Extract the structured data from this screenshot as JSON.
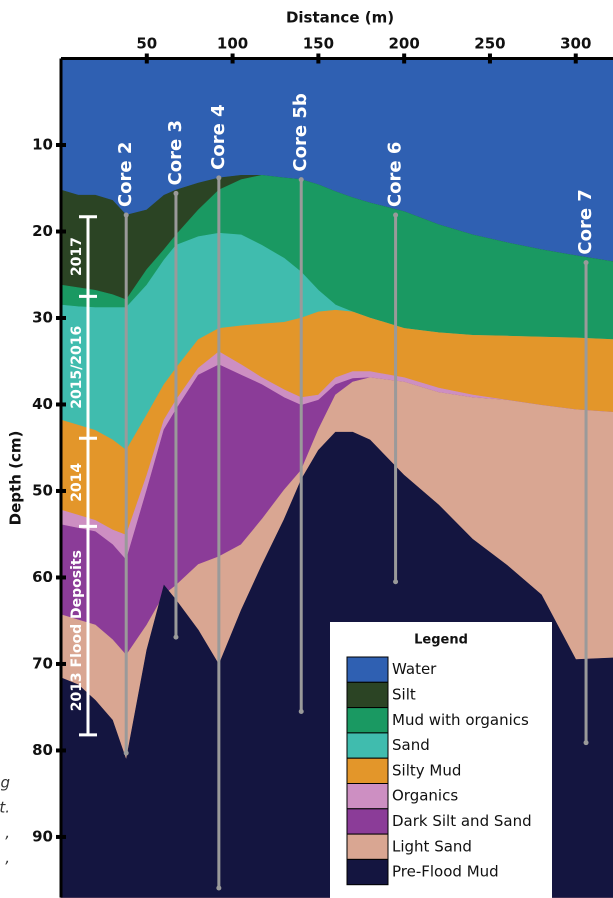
{
  "chart_data": {
    "type": "cross-section",
    "xlabel": "Distance (m)",
    "ylabel": "Depth (cm)",
    "xlim": [
      0,
      322
    ],
    "ylim": [
      0,
      97
    ],
    "xticks": [
      50,
      100,
      150,
      200,
      250,
      300
    ],
    "yticks": [
      10,
      20,
      30,
      40,
      50,
      60,
      70,
      80,
      90
    ],
    "x": [
      0,
      10,
      20,
      30,
      38,
      50,
      60,
      67,
      80,
      92,
      105,
      117,
      130,
      140,
      150,
      160,
      170,
      180,
      200,
      220,
      240,
      260,
      280,
      300,
      322
    ],
    "series": [
      {
        "name": "Water",
        "color": "#2f60b2",
        "values": [
          0,
          0,
          0,
          0,
          0,
          0,
          0,
          0,
          0,
          0,
          0,
          0,
          0,
          0,
          0,
          0,
          0,
          0,
          0,
          0,
          0,
          0,
          0,
          0,
          0
        ]
      },
      {
        "name": "Silt",
        "color": "#2b4424",
        "values": [
          15.2,
          15.8,
          15.8,
          16.4,
          18.1,
          17.5,
          15.8,
          15.2,
          14.4,
          13.8,
          13.5,
          13.5,
          13.8,
          14.0,
          14.6,
          15.4,
          16.1,
          16.7,
          17.7,
          19.2,
          20.4,
          21.3,
          22.1,
          22.8,
          23.5
        ]
      },
      {
        "name": "Mud with organics",
        "color": "#1a9962",
        "values": [
          26.2,
          26.5,
          26.8,
          27.3,
          27.9,
          24.4,
          22.1,
          20.4,
          17.5,
          15.2,
          14.0,
          13.5,
          13.8,
          14.0,
          14.6,
          15.4,
          16.1,
          16.7,
          17.7,
          19.2,
          20.4,
          21.3,
          22.1,
          22.8,
          23.5
        ]
      },
      {
        "name": "Sand",
        "color": "#40bcae",
        "values": [
          28.5,
          28.7,
          28.8,
          28.8,
          28.8,
          26.2,
          23.3,
          21.6,
          20.6,
          20.2,
          20.4,
          21.6,
          23.1,
          24.7,
          26.8,
          28.5,
          29.3,
          30.0,
          31.2,
          31.7,
          32.0,
          32.1,
          32.2,
          32.3,
          32.5
        ]
      },
      {
        "name": "Silty Mud",
        "color": "#e3962a",
        "values": [
          41.8,
          42.4,
          43.0,
          44.1,
          45.3,
          41.2,
          37.7,
          35.8,
          32.5,
          31.2,
          30.9,
          30.7,
          30.5,
          30.0,
          29.3,
          29.1,
          29.3,
          30.0,
          31.2,
          31.7,
          32.0,
          32.1,
          32.2,
          32.3,
          32.5
        ]
      },
      {
        "name": "Organics",
        "color": "#cd8fc2",
        "values": [
          52.2,
          52.8,
          53.4,
          54.5,
          55.1,
          48.2,
          41.8,
          39.5,
          35.8,
          33.9,
          35.4,
          36.9,
          38.3,
          39.2,
          38.9,
          36.9,
          36.2,
          36.2,
          36.9,
          38.1,
          38.9,
          39.5,
          40.1,
          40.6,
          40.9
        ]
      },
      {
        "name": "Dark Silt and Sand",
        "color": "#8b3c98",
        "values": [
          53.9,
          54.3,
          54.7,
          56.2,
          58.0,
          49.9,
          42.9,
          40.6,
          36.6,
          35.4,
          36.6,
          37.7,
          39.2,
          40.1,
          39.5,
          37.7,
          37.0,
          36.9,
          37.4,
          38.6,
          39.2,
          39.5,
          40.1,
          40.6,
          40.9
        ]
      },
      {
        "name": "Light Sand",
        "color": "#d9a692",
        "values": [
          64.3,
          64.9,
          65.5,
          67.2,
          69.0,
          65.5,
          62.0,
          60.9,
          58.5,
          57.6,
          56.2,
          53.3,
          49.9,
          47.6,
          42.9,
          38.9,
          37.4,
          36.9,
          37.4,
          38.6,
          39.2,
          39.5,
          40.1,
          40.6,
          40.9
        ]
      },
      {
        "name": "Pre-Flood Mud",
        "color": "#141540",
        "values": [
          71.6,
          72.4,
          74.2,
          76.5,
          81.1,
          68.4,
          60.9,
          62.6,
          66.1,
          70.1,
          63.8,
          58.6,
          53.3,
          48.7,
          45.3,
          43.2,
          43.2,
          44.1,
          48.2,
          51.6,
          55.6,
          58.6,
          62.0,
          69.5,
          69.3
        ]
      }
    ],
    "cores": [
      {
        "name": "Core 2",
        "x": 38,
        "top": 18.1,
        "bottom": 80.3
      },
      {
        "name": "Core 3",
        "x": 67,
        "top": 15.6,
        "bottom": 66.9
      },
      {
        "name": "Core 4",
        "x": 92,
        "top": 13.8,
        "bottom": 95.9
      },
      {
        "name": "Core 5b",
        "x": 140,
        "top": 14.0,
        "bottom": 75.5
      },
      {
        "name": "Core 6",
        "x": 195,
        "top": 18.1,
        "bottom": 60.5
      },
      {
        "name": "Core 7",
        "x": 306,
        "top": 23.6,
        "bottom": 79.1
      }
    ],
    "periods": [
      "2017",
      "2015/2016",
      "2014",
      "2013 Flood Deposits"
    ],
    "period_bounds": [
      18.3,
      27.5,
      43.9,
      54.1,
      78.2
    ],
    "legend_title": "Legend",
    "margin_fragments": [
      "g",
      "t.",
      ",",
      ","
    ]
  }
}
